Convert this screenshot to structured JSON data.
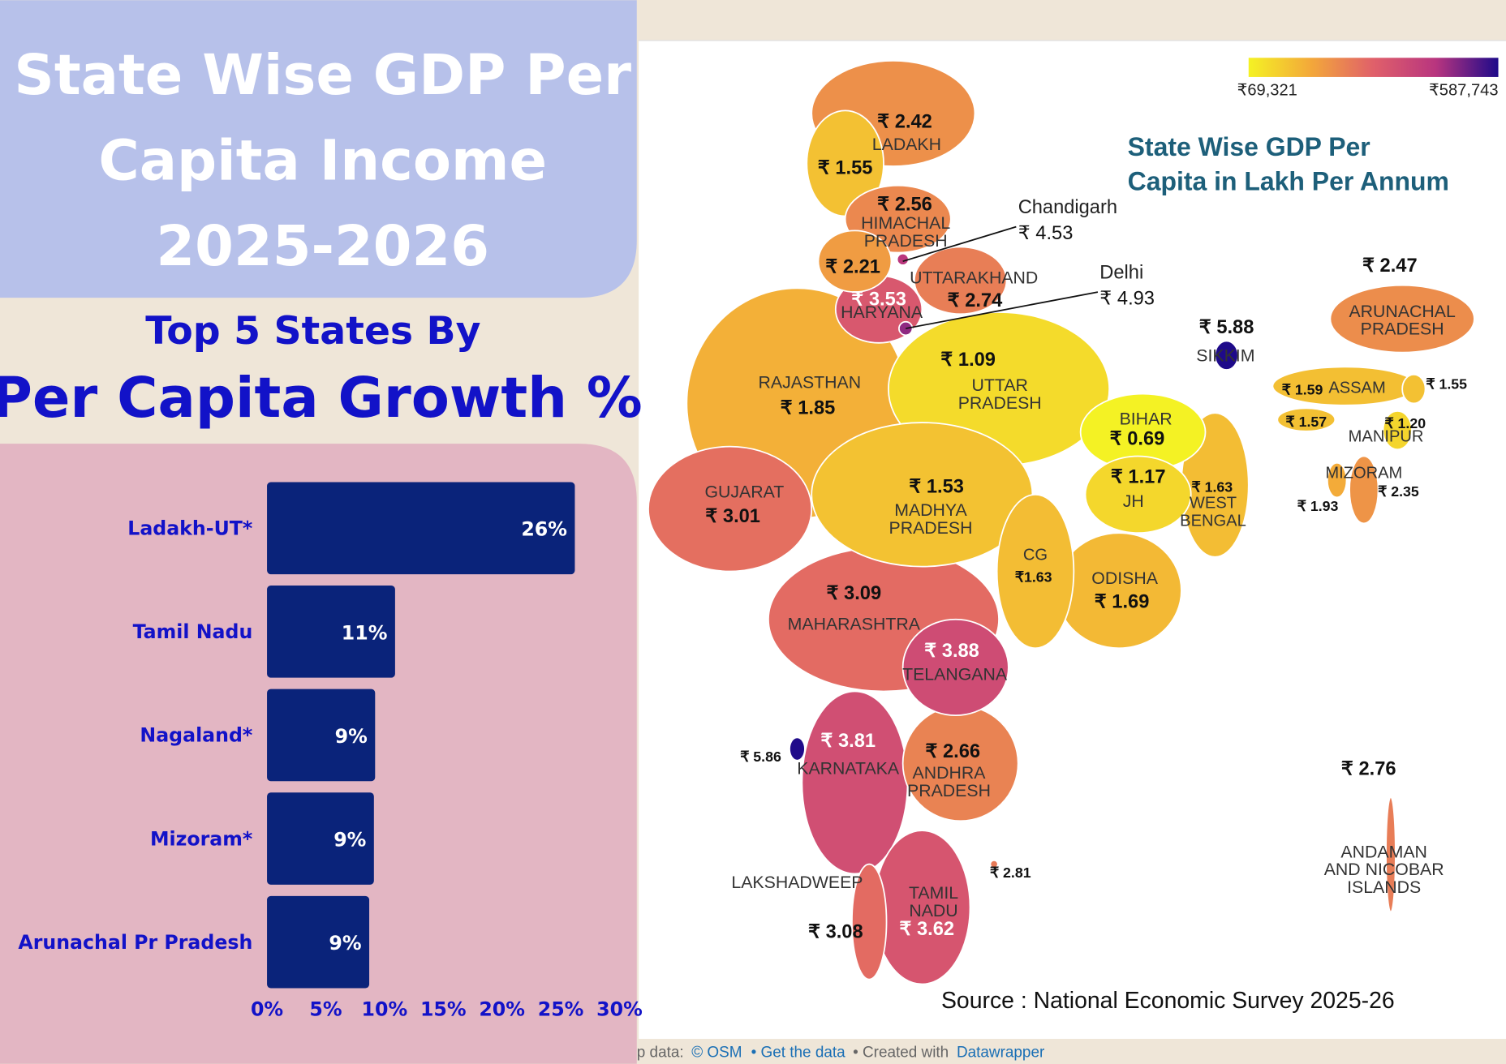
{
  "title": [
    "State Wise GDP Per",
    "Capita Income",
    "2025-2026"
  ],
  "subtitle": [
    "Top 5 States By",
    "Per Capita Growth %"
  ],
  "chart_data": [
    {
      "type": "bar",
      "orientation": "horizontal",
      "categories": [
        "Ladakh-UT*",
        "Tamil Nadu",
        "Nagaland*",
        "Mizoram*",
        "Arunachal Pr Pradesh"
      ],
      "values": [
        26.2,
        10.9,
        9.2,
        9.1,
        8.7
      ],
      "value_labels": [
        "26%",
        "11%",
        "9%",
        "9%",
        "9%"
      ],
      "color": "#0a237a",
      "xlim": [
        0,
        30
      ],
      "xticks": [
        {
          "value": 0,
          "label": "0%"
        },
        {
          "value": 5,
          "label": "5%"
        },
        {
          "value": 10,
          "label": "10%"
        },
        {
          "value": 15,
          "label": "15%"
        },
        {
          "value": 20,
          "label": "20%"
        },
        {
          "value": 25,
          "label": "25%"
        },
        {
          "value": 30,
          "label": "30%"
        }
      ]
    },
    {
      "type": "map",
      "title": [
        "State Wise GDP Per",
        "Capita in Lakh Per Annum"
      ],
      "colorscale": {
        "range": [
          {
            "value": 69321,
            "label": "₹69,321"
          },
          {
            "value": 587743,
            "label": "₹587,743"
          }
        ],
        "colors": [
          "#f4f224",
          "#f3a83a",
          "#e0606a",
          "#b8357f",
          "#1e0a8a"
        ]
      },
      "regions": [
        {
          "value": 1.55,
          "value_label": "₹ 1.55"
        },
        {
          "name": "LADAKH",
          "value": 2.42,
          "value_label": "₹ 2.42"
        },
        {
          "name": "HIMACHAL\nPRADESH",
          "value": 2.56,
          "value_label": "₹ 2.56"
        },
        {
          "value": 2.21,
          "value_label": "₹ 2.21"
        },
        {
          "name": "Chandigarh",
          "value": 4.53,
          "value_label": "₹ 4.53"
        },
        {
          "name": "HARYANA",
          "value": 3.53,
          "value_label": "₹ 3.53"
        },
        {
          "name": "UTTARAKHAND",
          "value": 2.74,
          "value_label": "₹ 2.74"
        },
        {
          "name": "Delhi",
          "value": 4.93,
          "value_label": "₹ 4.93"
        },
        {
          "name": "RAJASTHAN",
          "value": 1.85,
          "value_label": "₹ 1.85"
        },
        {
          "name": "UTTAR\nPRADESH",
          "value": 1.09,
          "value_label": "₹ 1.09"
        },
        {
          "name": "BIHAR",
          "value": 0.69,
          "value_label": "₹ 0.69"
        },
        {
          "name": "JH",
          "value": 1.17,
          "value_label": "₹ 1.17"
        },
        {
          "name": "WEST\nBENGAL",
          "value": 1.63,
          "value_label": "₹ 1.63"
        },
        {
          "name": "GUJARAT",
          "value": 3.01,
          "value_label": "₹ 3.01"
        },
        {
          "name": "MADHYA\nPRADESH",
          "value": 1.53,
          "value_label": "₹ 1.53"
        },
        {
          "name": "CG",
          "value": 1.63,
          "value_label": "₹1.63"
        },
        {
          "name": "ODISHA",
          "value": 1.69,
          "value_label": "₹ 1.69"
        },
        {
          "name": "MAHARASHTRA",
          "value": 3.09,
          "value_label": "₹ 3.09"
        },
        {
          "name": "TELANGANA",
          "value": 3.88,
          "value_label": "₹ 3.88"
        },
        {
          "value": 5.86,
          "value_label": "₹ 5.86"
        },
        {
          "name": "KARNATAKA",
          "value": 3.81,
          "value_label": "₹ 3.81"
        },
        {
          "name": "ANDHRA\nPRADESH",
          "value": 2.66,
          "value_label": "₹ 2.66"
        },
        {
          "value": 2.81,
          "value_label": "₹ 2.81"
        },
        {
          "name": "LAKSHADWEEP"
        },
        {
          "value": 3.08,
          "value_label": "₹ 3.08"
        },
        {
          "name": "TAMIL\nNADU",
          "value": 3.62,
          "value_label": "₹ 3.62"
        },
        {
          "name": "SIKKIM",
          "value": 5.88,
          "value_label": "₹ 5.88"
        },
        {
          "name": "ARUNACHAL\nPRADESH",
          "value": 2.47,
          "value_label": "₹ 2.47"
        },
        {
          "name": "ASSAM",
          "value": 1.59,
          "value_label": "₹ 1.59"
        },
        {
          "value": 1.55,
          "value_label": "₹ 1.55"
        },
        {
          "value": 1.57,
          "value_label": "₹ 1.57"
        },
        {
          "name": "MANIPUR",
          "value": 1.2,
          "value_label": "₹ 1.20"
        },
        {
          "name": "MIZORAM",
          "value": 2.35,
          "value_label": "₹ 2.35"
        },
        {
          "value": 1.93,
          "value_label": "₹ 1.93"
        },
        {
          "name": "ANDAMAN\nAND NICOBAR\nISLANDS",
          "value": 2.76,
          "value_label": "₹ 2.76"
        }
      ],
      "source": "Source : National Economic Survey 2025-26"
    }
  ],
  "footer": {
    "map_data": "p data:",
    "osm": "© OSM",
    "get_data": "• Get the data",
    "created": "• Created with",
    "tool": "Datawrapper"
  }
}
